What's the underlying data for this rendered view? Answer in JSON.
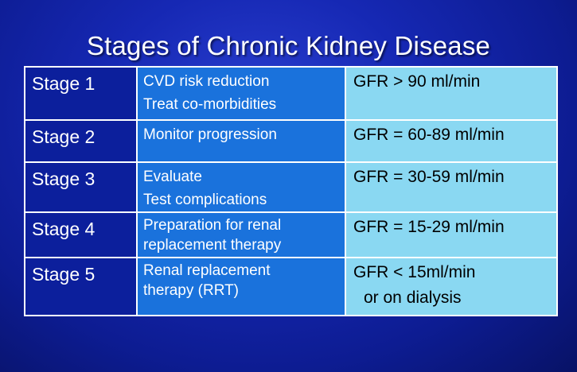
{
  "title": "Stages of Chronic Kidney Disease",
  "rows": [
    {
      "stage": "Stage 1",
      "description": [
        "CVD risk reduction",
        "Treat co-morbidities"
      ],
      "gfr": [
        "GFR > 90 ml/min"
      ]
    },
    {
      "stage": "Stage 2",
      "description": [
        "Monitor progression"
      ],
      "gfr": [
        "GFR = 60-89 ml/min"
      ]
    },
    {
      "stage": "Stage 3",
      "description": [
        "Evaluate",
        "Test complications"
      ],
      "gfr": [
        "GFR = 30-59 ml/min"
      ]
    },
    {
      "stage": "Stage 4",
      "description": [
        "Preparation for renal",
        "replacement therapy"
      ],
      "gfr": [
        "GFR = 15-29 ml/min"
      ]
    },
    {
      "stage": "Stage 5",
      "description": [
        "Renal replacement",
        "therapy (RRT)"
      ],
      "gfr": [
        "GFR < 15ml/min",
        "or on dialysis"
      ]
    }
  ],
  "colors": {
    "background": "#1628b4",
    "stage_column": "#0c1f9c",
    "description_column": "#1a72dc",
    "gfr_column": "#8ad8f2",
    "border": "#ffffff"
  }
}
